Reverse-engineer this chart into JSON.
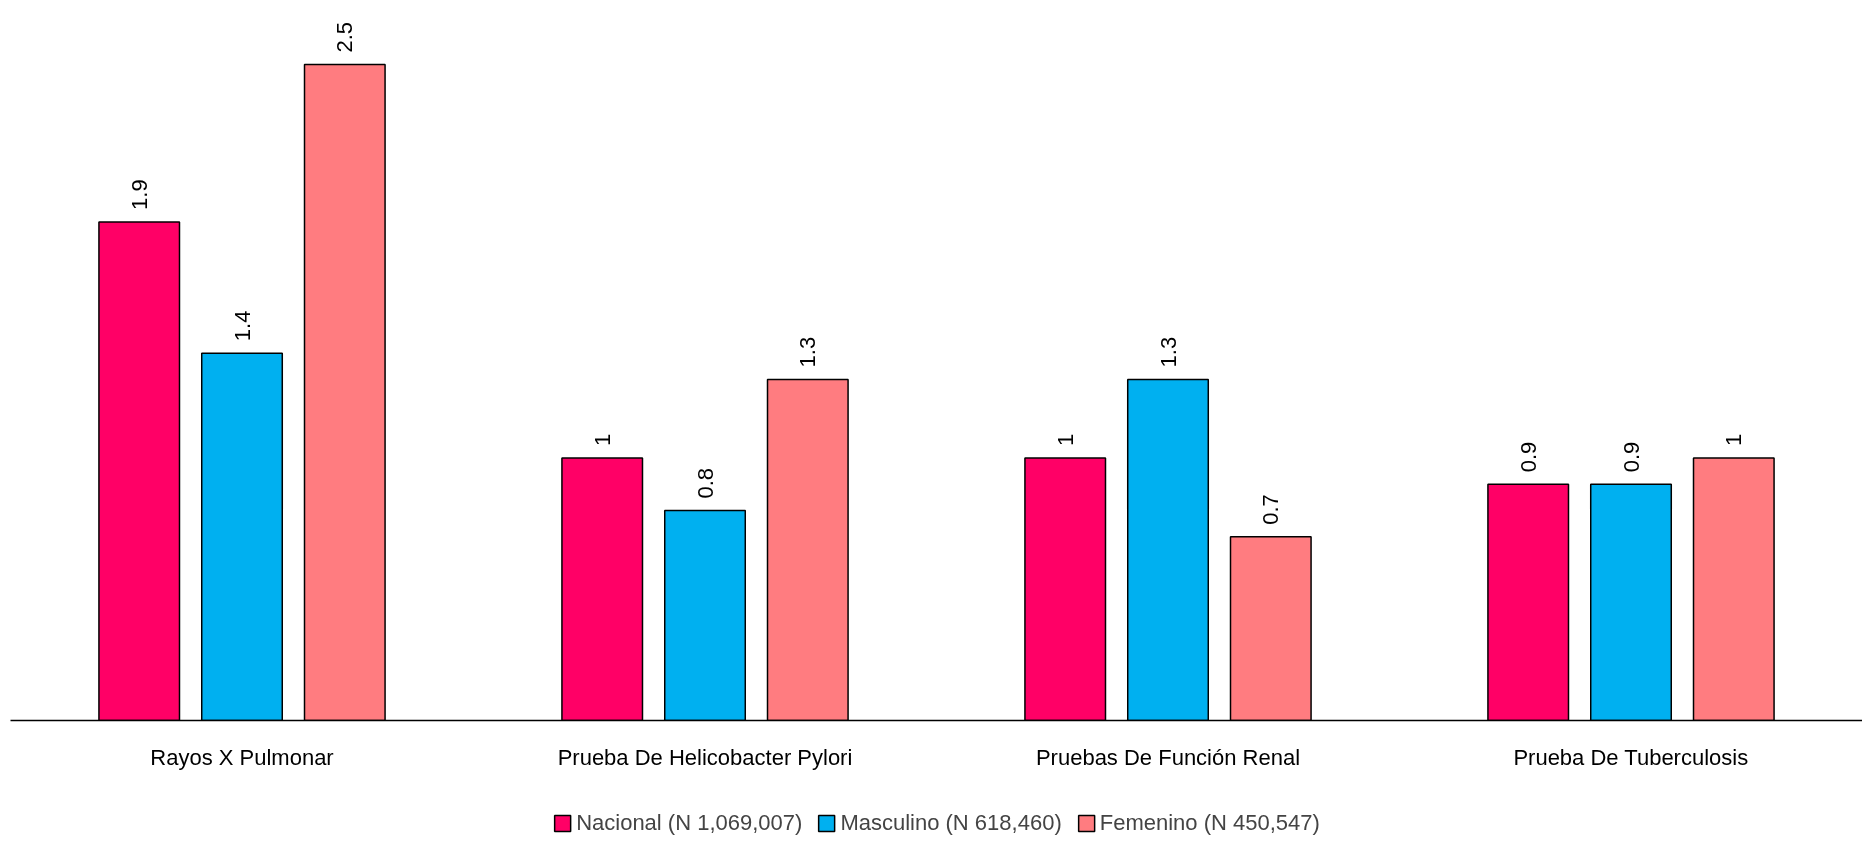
{
  "chart_data": {
    "type": "bar",
    "categories": [
      "Rayos X Pulmonar",
      "Prueba De Helicobacter Pylori",
      "Pruebas De Función Renal",
      "Prueba De Tuberculosis"
    ],
    "series": [
      {
        "name": "Nacional (N 1,069,007)",
        "color": "#ff0066",
        "values": [
          1.9,
          1,
          1,
          0.9
        ]
      },
      {
        "name": "Masculino (N 618,460)",
        "color": "#00b0f0",
        "values": [
          1.4,
          0.8,
          1.3,
          0.9
        ]
      },
      {
        "name": "Femenino (N 450,547)",
        "color": "#ff7c80",
        "values": [
          2.5,
          1.3,
          0.7,
          1
        ]
      }
    ],
    "data_labels": true,
    "legend": "bottom",
    "grid": false
  }
}
